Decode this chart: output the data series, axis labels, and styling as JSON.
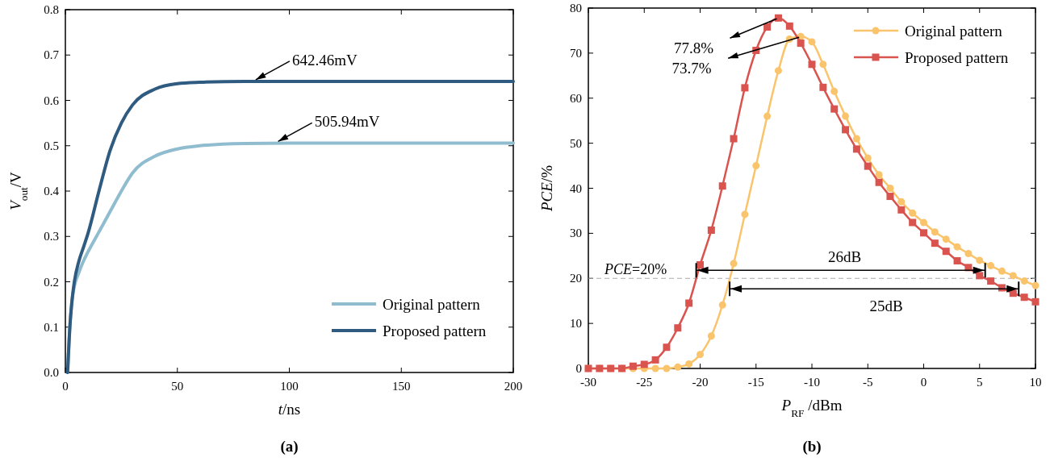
{
  "chart_data": [
    {
      "type": "line",
      "title": "(a)",
      "xlabel": "t/ns",
      "ylabel": "V$_{out}$/V",
      "xlim": [
        0,
        200
      ],
      "xticks": [
        0,
        50,
        100,
        150,
        200
      ],
      "ylim": [
        0,
        0.8
      ],
      "yticks": [
        {
          "value": 0,
          "label": "0.0"
        },
        0.1,
        0.2,
        0.3,
        0.4,
        0.5,
        0.6,
        0.7,
        0.8
      ],
      "legend": "bottom right",
      "marker": "none",
      "line_style": "solid",
      "series": [
        {
          "name": "Original pattern",
          "color": "#8fbccf",
          "x": [
            1,
            2,
            3,
            4,
            6,
            8,
            10,
            15,
            20,
            25,
            30,
            40,
            50,
            60,
            80,
            100,
            200
          ],
          "values": [
            0,
            0.1,
            0.16,
            0.19,
            0.22,
            0.245,
            0.265,
            0.31,
            0.355,
            0.4,
            0.44,
            0.477,
            0.493,
            0.5,
            0.505,
            0.506,
            0.506
          ]
        },
        {
          "name": "Proposed pattern",
          "color": "#2f5b80",
          "x": [
            1,
            2,
            3,
            4,
            6,
            8,
            10,
            15,
            20,
            25,
            30,
            40,
            50,
            60,
            80,
            100,
            200
          ],
          "values": [
            0,
            0.1,
            0.16,
            0.2,
            0.245,
            0.275,
            0.305,
            0.4,
            0.49,
            0.55,
            0.59,
            0.625,
            0.637,
            0.64,
            0.642,
            0.642,
            0.642
          ]
        }
      ],
      "annotations": [
        {
          "text": "642.46mV",
          "x": 85,
          "y": 0.642
        },
        {
          "text": "505.94mV",
          "x": 95,
          "y": 0.506
        }
      ]
    },
    {
      "type": "line",
      "title": "(b)",
      "xlabel": "P$_{RF}$ /dBm",
      "ylabel": "PCE/%",
      "xlim": [
        -30,
        10
      ],
      "xticks": [
        -30,
        -25,
        -20,
        -15,
        -10,
        -5,
        0,
        5,
        10
      ],
      "ylim": [
        0,
        80
      ],
      "yticks": [
        0,
        10,
        20,
        30,
        40,
        50,
        60,
        70,
        80
      ],
      "legend": "top right",
      "line_style": "solid",
      "x": [
        -30,
        -29,
        -28,
        -27,
        -26,
        -25,
        -24,
        -23,
        -22,
        -21,
        -20,
        -19,
        -18,
        -17,
        -16,
        -15,
        -14,
        -13,
        -12,
        -11,
        -10,
        -9,
        -8,
        -7,
        -6,
        -5,
        -4,
        -3,
        -2,
        -1,
        0,
        1,
        2,
        3,
        4,
        5,
        6,
        7,
        8,
        9,
        10
      ],
      "series": [
        {
          "name": "Original pattern",
          "color": "#f9c46c",
          "marker": "circle",
          "values": [
            0,
            0,
            0,
            0,
            0,
            0,
            0,
            0,
            0.3,
            1,
            3.1,
            7.2,
            14.1,
            23.3,
            34.2,
            45,
            56,
            66.1,
            73.1,
            73.7,
            72.5,
            67.5,
            61.5,
            56,
            51,
            46.7,
            43,
            40,
            37,
            34.5,
            32.4,
            30.3,
            28.7,
            27,
            25.5,
            24,
            22.8,
            21.6,
            20.6,
            19.4,
            18.4
          ]
        },
        {
          "name": "Proposed pattern",
          "color": "#d9534f",
          "marker": "square",
          "values": [
            0,
            0,
            0,
            0,
            0.5,
            0.9,
            1.9,
            4.7,
            9,
            14.5,
            23,
            30.7,
            40.5,
            51,
            62.3,
            70.6,
            75.8,
            77.8,
            76,
            72.2,
            67.5,
            62.4,
            57.6,
            53,
            48.7,
            44.9,
            41.3,
            38.2,
            35.2,
            32.4,
            30.1,
            27.8,
            26,
            23.9,
            22.4,
            20.6,
            19.4,
            17.9,
            16.7,
            15.8,
            14.8
          ]
        }
      ],
      "ref_lines": [
        {
          "axis": "y",
          "value": 20,
          "label": "PCE=20%",
          "color": "#aaaaaa",
          "line_style": "dashed"
        }
      ],
      "annotations": [
        {
          "text": "77.8%",
          "x": -13,
          "y": 77.8
        },
        {
          "text": "73.7%",
          "x": -11,
          "y": 73.7
        },
        "25dB",
        "26dB"
      ]
    }
  ]
}
